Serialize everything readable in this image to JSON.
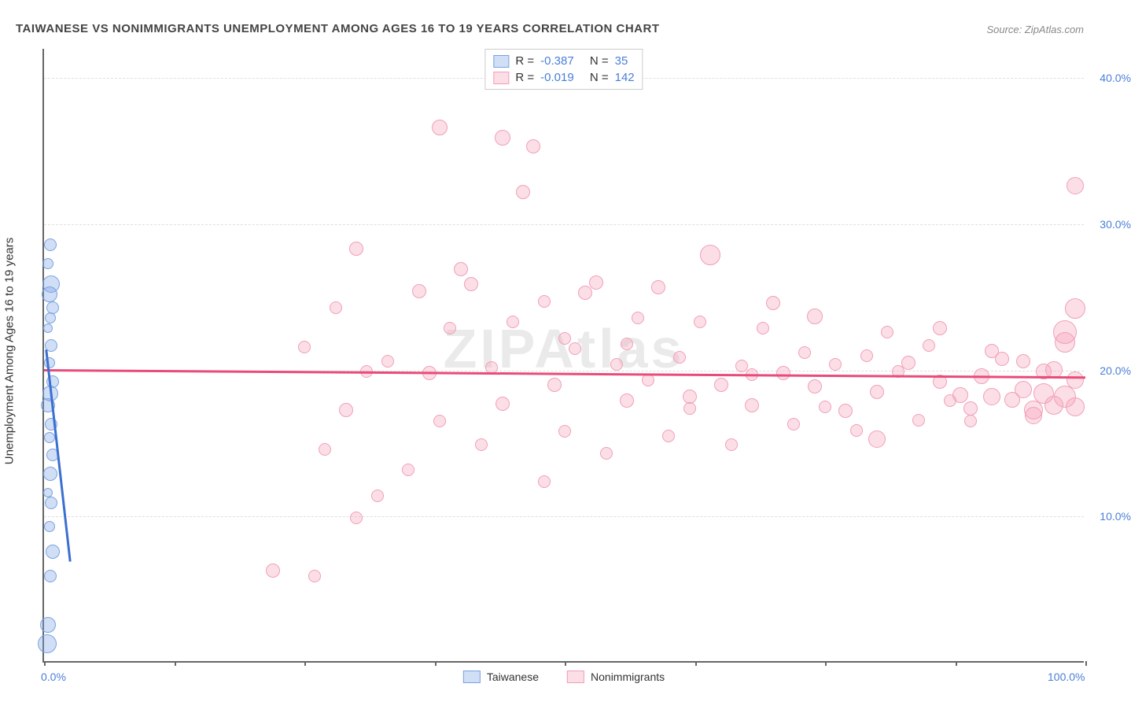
{
  "title": "TAIWANESE VS NONIMMIGRANTS UNEMPLOYMENT AMONG AGES 16 TO 19 YEARS CORRELATION CHART",
  "source": "Source: ZipAtlas.com",
  "watermark": "ZIPAtlas",
  "ylabel": "Unemployment Among Ages 16 to 19 years",
  "chart": {
    "xlim": [
      0,
      100
    ],
    "ylim": [
      0,
      42
    ],
    "yticks": [
      10,
      20,
      30,
      40
    ],
    "ytick_labels": [
      "10.0%",
      "20.0%",
      "30.0%",
      "40.0%"
    ],
    "xticks": [
      0,
      12.5,
      25,
      37.5,
      50,
      62.5,
      75,
      87.5,
      100
    ],
    "xtick_labels": {
      "0": "0.0%",
      "100": "100.0%"
    },
    "grid_color": "#e0e0e0",
    "axis_color": "#666666",
    "label_color": "#4a7fd8",
    "bg": "#ffffff"
  },
  "series": {
    "taiwanese": {
      "label": "Taiwanese",
      "color_fill": "rgba(120,160,230,0.35)",
      "color_stroke": "#7aa3e0",
      "R": "-0.387",
      "N": "35",
      "trend": {
        "x1": 0.2,
        "y1": 21.5,
        "x2": 2.5,
        "y2": 7,
        "color": "#3b6fd0"
      },
      "points": [
        {
          "x": 0.3,
          "y": 1.2,
          "r": 12
        },
        {
          "x": 0.4,
          "y": 2.5,
          "r": 10
        },
        {
          "x": 0.6,
          "y": 5.8,
          "r": 8
        },
        {
          "x": 0.8,
          "y": 7.5,
          "r": 9
        },
        {
          "x": 0.5,
          "y": 9.2,
          "r": 7
        },
        {
          "x": 0.7,
          "y": 10.8,
          "r": 8
        },
        {
          "x": 0.4,
          "y": 11.5,
          "r": 6
        },
        {
          "x": 0.6,
          "y": 12.8,
          "r": 9
        },
        {
          "x": 0.8,
          "y": 14.1,
          "r": 8
        },
        {
          "x": 0.5,
          "y": 15.3,
          "r": 7
        },
        {
          "x": 0.7,
          "y": 16.2,
          "r": 8
        },
        {
          "x": 0.4,
          "y": 17.5,
          "r": 9
        },
        {
          "x": 0.6,
          "y": 18.3,
          "r": 10
        },
        {
          "x": 0.8,
          "y": 19.1,
          "r": 8
        },
        {
          "x": 0.5,
          "y": 20.4,
          "r": 7
        },
        {
          "x": 0.7,
          "y": 21.6,
          "r": 8
        },
        {
          "x": 0.4,
          "y": 22.8,
          "r": 6
        },
        {
          "x": 0.6,
          "y": 23.5,
          "r": 7
        },
        {
          "x": 0.8,
          "y": 24.2,
          "r": 8
        },
        {
          "x": 0.5,
          "y": 25.1,
          "r": 10
        },
        {
          "x": 0.7,
          "y": 25.8,
          "r": 11
        },
        {
          "x": 0.4,
          "y": 27.2,
          "r": 7
        },
        {
          "x": 0.6,
          "y": 28.5,
          "r": 8
        }
      ]
    },
    "nonimmigrants": {
      "label": "Nonimmigrants",
      "color_fill": "rgba(245,160,185,0.35)",
      "color_stroke": "#f0a0b8",
      "R": "-0.019",
      "N": "142",
      "trend": {
        "x1": 0,
        "y1": 20.1,
        "x2": 100,
        "y2": 19.6,
        "color": "#e94b7a"
      },
      "points": [
        {
          "x": 22,
          "y": 6.2,
          "r": 9
        },
        {
          "x": 26,
          "y": 5.8,
          "r": 8
        },
        {
          "x": 30,
          "y": 9.8,
          "r": 8
        },
        {
          "x": 32,
          "y": 11.3,
          "r": 8
        },
        {
          "x": 27,
          "y": 14.5,
          "r": 8
        },
        {
          "x": 29,
          "y": 17.2,
          "r": 9
        },
        {
          "x": 31,
          "y": 19.8,
          "r": 8
        },
        {
          "x": 25,
          "y": 21.5,
          "r": 8
        },
        {
          "x": 28,
          "y": 24.2,
          "r": 8
        },
        {
          "x": 33,
          "y": 20.5,
          "r": 8
        },
        {
          "x": 30,
          "y": 28.2,
          "r": 9
        },
        {
          "x": 35,
          "y": 13.1,
          "r": 8
        },
        {
          "x": 38,
          "y": 16.4,
          "r": 8
        },
        {
          "x": 37,
          "y": 19.7,
          "r": 9
        },
        {
          "x": 39,
          "y": 22.8,
          "r": 8
        },
        {
          "x": 36,
          "y": 25.3,
          "r": 9
        },
        {
          "x": 40,
          "y": 26.8,
          "r": 9
        },
        {
          "x": 38,
          "y": 36.5,
          "r": 10
        },
        {
          "x": 42,
          "y": 14.8,
          "r": 8
        },
        {
          "x": 44,
          "y": 17.6,
          "r": 9
        },
        {
          "x": 43,
          "y": 20.1,
          "r": 8
        },
        {
          "x": 45,
          "y": 23.2,
          "r": 8
        },
        {
          "x": 41,
          "y": 25.8,
          "r": 9
        },
        {
          "x": 46,
          "y": 32.1,
          "r": 9
        },
        {
          "x": 44,
          "y": 35.8,
          "r": 10
        },
        {
          "x": 47,
          "y": 35.2,
          "r": 9
        },
        {
          "x": 48,
          "y": 12.3,
          "r": 8
        },
        {
          "x": 50,
          "y": 15.7,
          "r": 8
        },
        {
          "x": 49,
          "y": 18.9,
          "r": 9
        },
        {
          "x": 51,
          "y": 21.4,
          "r": 8
        },
        {
          "x": 48,
          "y": 24.6,
          "r": 8
        },
        {
          "x": 52,
          "y": 25.2,
          "r": 9
        },
        {
          "x": 50,
          "y": 22.1,
          "r": 8
        },
        {
          "x": 54,
          "y": 14.2,
          "r": 8
        },
        {
          "x": 56,
          "y": 17.8,
          "r": 9
        },
        {
          "x": 55,
          "y": 20.3,
          "r": 8
        },
        {
          "x": 57,
          "y": 23.5,
          "r": 8
        },
        {
          "x": 53,
          "y": 25.9,
          "r": 9
        },
        {
          "x": 58,
          "y": 19.2,
          "r": 8
        },
        {
          "x": 56,
          "y": 21.7,
          "r": 8
        },
        {
          "x": 60,
          "y": 15.4,
          "r": 8
        },
        {
          "x": 62,
          "y": 18.1,
          "r": 9
        },
        {
          "x": 61,
          "y": 20.8,
          "r": 8
        },
        {
          "x": 63,
          "y": 23.2,
          "r": 8
        },
        {
          "x": 59,
          "y": 25.6,
          "r": 9
        },
        {
          "x": 64,
          "y": 27.8,
          "r": 13
        },
        {
          "x": 62,
          "y": 17.3,
          "r": 8
        },
        {
          "x": 66,
          "y": 14.8,
          "r": 8
        },
        {
          "x": 68,
          "y": 17.5,
          "r": 9
        },
        {
          "x": 67,
          "y": 20.2,
          "r": 8
        },
        {
          "x": 69,
          "y": 22.8,
          "r": 8
        },
        {
          "x": 65,
          "y": 18.9,
          "r": 9
        },
        {
          "x": 70,
          "y": 24.5,
          "r": 9
        },
        {
          "x": 68,
          "y": 19.6,
          "r": 8
        },
        {
          "x": 72,
          "y": 16.2,
          "r": 8
        },
        {
          "x": 74,
          "y": 18.8,
          "r": 9
        },
        {
          "x": 73,
          "y": 21.1,
          "r": 8
        },
        {
          "x": 75,
          "y": 17.4,
          "r": 8
        },
        {
          "x": 71,
          "y": 19.7,
          "r": 9
        },
        {
          "x": 76,
          "y": 20.3,
          "r": 8
        },
        {
          "x": 74,
          "y": 23.6,
          "r": 10
        },
        {
          "x": 78,
          "y": 15.8,
          "r": 8
        },
        {
          "x": 80,
          "y": 18.4,
          "r": 9
        },
        {
          "x": 79,
          "y": 20.9,
          "r": 8
        },
        {
          "x": 81,
          "y": 22.5,
          "r": 8
        },
        {
          "x": 77,
          "y": 17.1,
          "r": 9
        },
        {
          "x": 82,
          "y": 19.8,
          "r": 8
        },
        {
          "x": 80,
          "y": 15.2,
          "r": 11
        },
        {
          "x": 84,
          "y": 16.5,
          "r": 8
        },
        {
          "x": 86,
          "y": 19.1,
          "r": 9
        },
        {
          "x": 85,
          "y": 21.6,
          "r": 8
        },
        {
          "x": 87,
          "y": 17.8,
          "r": 8
        },
        {
          "x": 83,
          "y": 20.4,
          "r": 9
        },
        {
          "x": 88,
          "y": 18.2,
          "r": 10
        },
        {
          "x": 86,
          "y": 22.8,
          "r": 9
        },
        {
          "x": 89,
          "y": 17.3,
          "r": 9
        },
        {
          "x": 90,
          "y": 19.5,
          "r": 10
        },
        {
          "x": 91,
          "y": 18.1,
          "r": 11
        },
        {
          "x": 92,
          "y": 20.7,
          "r": 9
        },
        {
          "x": 89,
          "y": 16.4,
          "r": 8
        },
        {
          "x": 93,
          "y": 17.9,
          "r": 10
        },
        {
          "x": 91,
          "y": 21.2,
          "r": 9
        },
        {
          "x": 94,
          "y": 18.6,
          "r": 11
        },
        {
          "x": 95,
          "y": 17.2,
          "r": 12
        },
        {
          "x": 96,
          "y": 19.8,
          "r": 10
        },
        {
          "x": 94,
          "y": 20.5,
          "r": 9
        },
        {
          "x": 95,
          "y": 16.8,
          "r": 11
        },
        {
          "x": 96,
          "y": 18.3,
          "r": 13
        },
        {
          "x": 97,
          "y": 17.5,
          "r": 12
        },
        {
          "x": 97,
          "y": 19.9,
          "r": 11
        },
        {
          "x": 98,
          "y": 18.1,
          "r": 14
        },
        {
          "x": 98,
          "y": 21.8,
          "r": 13
        },
        {
          "x": 99,
          "y": 17.4,
          "r": 12
        },
        {
          "x": 99,
          "y": 19.2,
          "r": 11
        },
        {
          "x": 98,
          "y": 22.5,
          "r": 15
        },
        {
          "x": 99,
          "y": 24.1,
          "r": 13
        },
        {
          "x": 99,
          "y": 32.5,
          "r": 11
        }
      ]
    }
  },
  "legend": {
    "taiwanese": "Taiwanese",
    "nonimmigrants": "Nonimmigrants"
  },
  "stats_labels": {
    "R": "R =",
    "N": "N ="
  }
}
